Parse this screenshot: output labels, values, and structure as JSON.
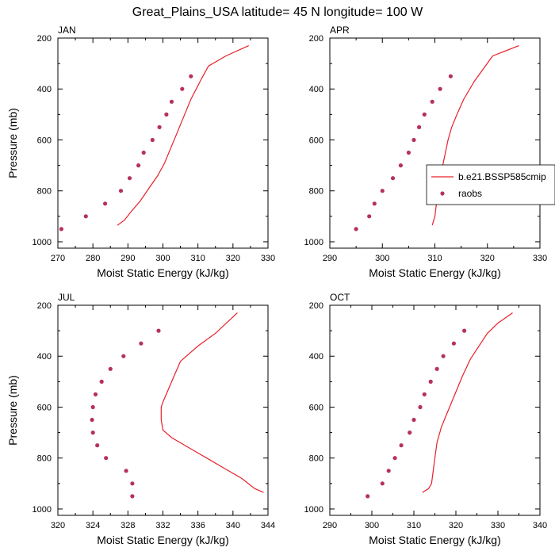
{
  "figure": {
    "title": "Great_Plains_USA  latitude= 45 N longitude= 100 W",
    "legend": {
      "model_label": "b.e21.BSSP585cmip",
      "obs_label": "raobs"
    },
    "colors": {
      "model": "#e8202a",
      "obs": "#b5325a",
      "axis": "#000000"
    }
  },
  "chart_data": [
    {
      "type": "line",
      "panel": "JAN",
      "title": "JAN",
      "xlabel": "Moist Static Energy (kJ/kg)",
      "ylabel": "Pressure (mb)",
      "xlim": [
        270,
        330
      ],
      "ylim": [
        1025,
        200
      ],
      "y_reversed": true,
      "xticks": [
        270,
        280,
        290,
        300,
        310,
        320,
        330
      ],
      "yticks": [
        200,
        400,
        600,
        800,
        1000
      ],
      "grid": false,
      "legend_position": "none",
      "series": [
        {
          "name": "b.e21.BSSP585cmip",
          "kind": "line",
          "x": [
            287.0,
            289.0,
            291.0,
            293.5,
            296.0,
            298.5,
            300.5,
            302.0,
            303.5,
            305.0,
            306.5,
            308.0,
            309.5,
            311.0,
            313.0,
            318.0,
            324.5
          ],
          "y": [
            935,
            915,
            880,
            840,
            790,
            740,
            690,
            640,
            590,
            540,
            490,
            440,
            400,
            360,
            310,
            270,
            230
          ]
        },
        {
          "name": "raobs",
          "kind": "scatter",
          "x": [
            271.0,
            278.0,
            283.5,
            288.0,
            290.5,
            293.0,
            294.5,
            297.0,
            299.0,
            301.0,
            302.5,
            305.5,
            308.0
          ],
          "y": [
            950,
            900,
            850,
            800,
            750,
            700,
            650,
            600,
            550,
            500,
            450,
            400,
            350
          ]
        }
      ]
    },
    {
      "type": "line",
      "panel": "APR",
      "title": "APR",
      "xlabel": "Moist Static Energy (kJ/kg)",
      "ylabel": "",
      "xlim": [
        290,
        330
      ],
      "ylim": [
        1025,
        200
      ],
      "y_reversed": true,
      "xticks": [
        290,
        300,
        310,
        320,
        330
      ],
      "yticks": [
        200,
        400,
        600,
        800,
        1000
      ],
      "grid": false,
      "legend_position": "right",
      "series": [
        {
          "name": "b.e21.BSSP585cmip",
          "kind": "line",
          "x": [
            309.5,
            310.0,
            310.3,
            310.7,
            311.0,
            311.5,
            312.0,
            312.5,
            313.2,
            314.2,
            315.5,
            317.5,
            321.0,
            326.0
          ],
          "y": [
            935,
            900,
            850,
            800,
            750,
            700,
            650,
            600,
            550,
            500,
            440,
            370,
            270,
            230
          ]
        },
        {
          "name": "raobs",
          "kind": "scatter",
          "x": [
            295.0,
            297.5,
            298.5,
            300.0,
            302.0,
            303.5,
            305.0,
            306.0,
            307.0,
            308.0,
            309.5,
            311.0,
            313.0
          ],
          "y": [
            950,
            900,
            850,
            800,
            750,
            700,
            650,
            600,
            550,
            500,
            450,
            400,
            350
          ]
        }
      ]
    },
    {
      "type": "line",
      "panel": "JUL",
      "title": "JUL",
      "xlabel": "Moist Static Energy (kJ/kg)",
      "ylabel": "Pressure (mb)",
      "xlim": [
        320,
        344
      ],
      "ylim": [
        1025,
        200
      ],
      "y_reversed": true,
      "xticks": [
        320,
        324,
        328,
        332,
        336,
        340,
        344
      ],
      "yticks": [
        200,
        400,
        600,
        800,
        1000
      ],
      "grid": false,
      "legend_position": "none",
      "series": [
        {
          "name": "b.e21.BSSP585cmip",
          "kind": "line",
          "x": [
            343.5,
            342.5,
            341.0,
            339.0,
            337.0,
            335.0,
            333.0,
            332.0,
            331.8,
            331.8,
            332.0,
            333.0,
            334.0,
            336.0,
            338.0,
            340.5
          ],
          "y": [
            935,
            920,
            880,
            840,
            800,
            760,
            720,
            690,
            650,
            600,
            580,
            500,
            420,
            360,
            310,
            230
          ]
        },
        {
          "name": "raobs",
          "kind": "scatter",
          "x": [
            328.5,
            328.5,
            327.8,
            325.5,
            324.5,
            324.0,
            323.9,
            324.0,
            324.3,
            325.0,
            326.0,
            327.5,
            329.5,
            331.5
          ],
          "y": [
            950,
            900,
            850,
            800,
            750,
            700,
            650,
            600,
            550,
            500,
            450,
            400,
            350,
            300
          ]
        }
      ]
    },
    {
      "type": "line",
      "panel": "OCT",
      "title": "OCT",
      "xlabel": "Moist Static Energy (kJ/kg)",
      "ylabel": "",
      "xlim": [
        290,
        340
      ],
      "ylim": [
        1025,
        200
      ],
      "y_reversed": true,
      "xticks": [
        290,
        300,
        310,
        320,
        330,
        340
      ],
      "yticks": [
        200,
        400,
        600,
        800,
        1000
      ],
      "grid": false,
      "legend_position": "none",
      "series": [
        {
          "name": "b.e21.BSSP585cmip",
          "kind": "line",
          "x": [
            312.0,
            313.5,
            314.2,
            314.6,
            315.0,
            315.5,
            316.5,
            318.0,
            319.5,
            321.5,
            323.5,
            325.5,
            327.5,
            330.0,
            333.5
          ],
          "y": [
            935,
            920,
            900,
            850,
            800,
            740,
            680,
            620,
            560,
            480,
            410,
            360,
            310,
            270,
            230
          ]
        },
        {
          "name": "raobs",
          "kind": "scatter",
          "x": [
            299.0,
            302.5,
            304.0,
            305.5,
            307.0,
            309.0,
            310.0,
            311.5,
            312.5,
            314.0,
            315.5,
            317.0,
            319.5,
            322.0
          ],
          "y": [
            950,
            900,
            850,
            800,
            750,
            700,
            650,
            600,
            550,
            500,
            450,
            400,
            350,
            300
          ]
        }
      ]
    }
  ]
}
